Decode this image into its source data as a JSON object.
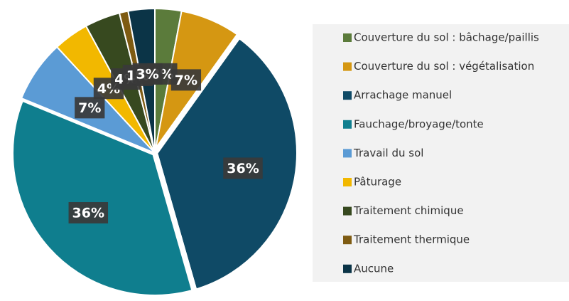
{
  "chart_data": {
    "type": "pie",
    "categories": [
      "Couverture du sol : bâchage/paillis",
      "Couverture du sol : végétalisation",
      "Arrachage manuel",
      "Fauchage/broyage/tonte",
      "Travail du sol",
      "Pâturage",
      "Traitement chimique",
      "Traitement thermique",
      "Aucune"
    ],
    "values": [
      3,
      7,
      36,
      36,
      7,
      4,
      4,
      1,
      3
    ],
    "value_labels": [
      "3%",
      "7%",
      "36%",
      "36%",
      "7%",
      "4%",
      "4%",
      "1%",
      "3%"
    ],
    "colors": [
      "#5b7b3b",
      "#d59712",
      "#0f4a66",
      "#0f7e8e",
      "#5b9bd5",
      "#f2b800",
      "#37491f",
      "#7e5b12",
      "#0b3447"
    ],
    "legend": "right"
  }
}
